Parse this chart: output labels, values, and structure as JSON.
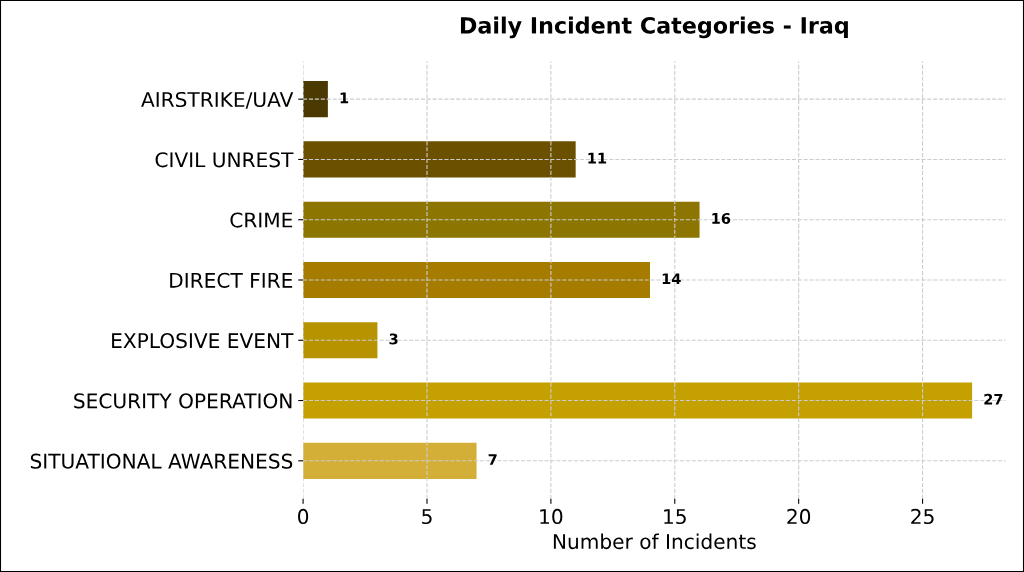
{
  "chart_data": {
    "type": "bar",
    "orientation": "horizontal",
    "title": "Daily Incident Categories - Iraq",
    "xlabel": "Number of Incidents",
    "categories": [
      "AIRSTRIKE/UAV",
      "CIVIL UNREST",
      "CRIME",
      "DIRECT FIRE",
      "EXPLOSIVE EVENT",
      "SECURITY OPERATION",
      "SITUATIONAL AWARENESS"
    ],
    "values": [
      1,
      11,
      16,
      14,
      3,
      27,
      7
    ],
    "colors": [
      "#4a3900",
      "#6b5000",
      "#8c7500",
      "#a67c00",
      "#b89300",
      "#c4a000",
      "#d4af37"
    ],
    "xlim": [
      0,
      28.35
    ],
    "xticks": [
      0,
      5,
      10,
      15,
      20,
      25
    ],
    "grid": true,
    "data_labels": true
  }
}
